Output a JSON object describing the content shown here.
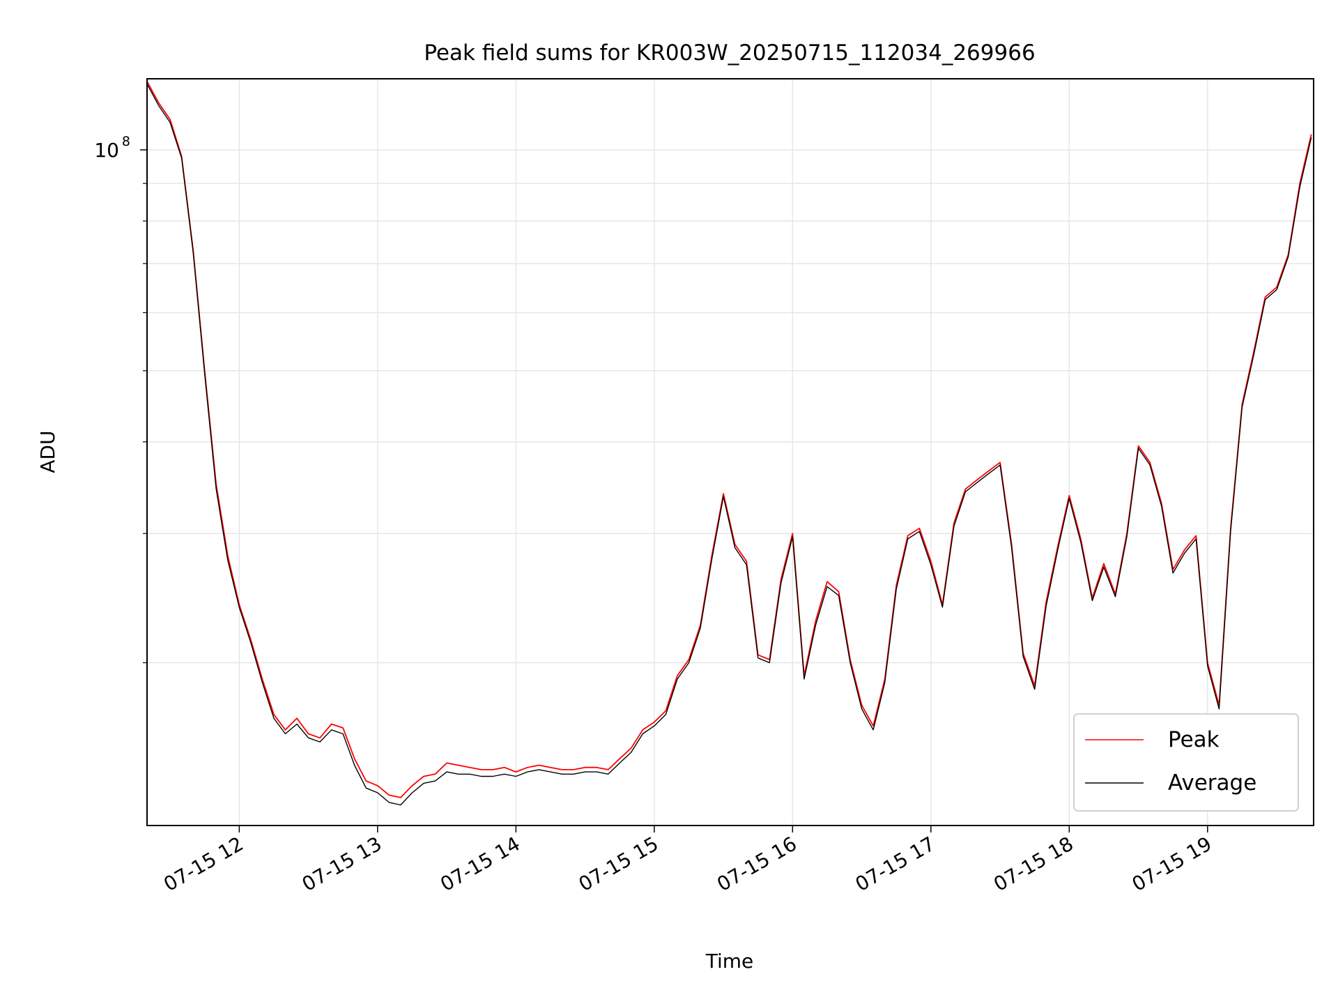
{
  "chart_data": {
    "type": "line",
    "title": "Peak field sums for KR003W_20250715_112034_269966",
    "xlabel": "Time",
    "ylabel": "ADU",
    "y_scale": "log",
    "grid": true,
    "legend_position": "lower-right",
    "xlim": [
      "2025-07-15 11:20",
      "2025-07-15 19:46"
    ],
    "ylim": [
      12000000,
      125000000
    ],
    "x_ticks": [
      {
        "time": "2025-07-15 12:00",
        "label": "07-15 12"
      },
      {
        "time": "2025-07-15 13:00",
        "label": "07-15 13"
      },
      {
        "time": "2025-07-15 14:00",
        "label": "07-15 14"
      },
      {
        "time": "2025-07-15 15:00",
        "label": "07-15 15"
      },
      {
        "time": "2025-07-15 16:00",
        "label": "07-15 16"
      },
      {
        "time": "2025-07-15 17:00",
        "label": "07-15 17"
      },
      {
        "time": "2025-07-15 18:00",
        "label": "07-15 18"
      },
      {
        "time": "2025-07-15 19:00",
        "label": "07-15 19"
      }
    ],
    "y_major_tick": {
      "value": 100000000,
      "label_base": "10",
      "label_exp": "8"
    },
    "y_minor_ticks": [
      20000000,
      30000000,
      40000000,
      50000000,
      60000000,
      70000000,
      80000000,
      90000000
    ],
    "x": [
      "11:20",
      "11:25",
      "11:30",
      "11:35",
      "11:40",
      "11:45",
      "11:50",
      "11:55",
      "12:00",
      "12:05",
      "12:10",
      "12:15",
      "12:20",
      "12:25",
      "12:30",
      "12:35",
      "12:40",
      "12:45",
      "12:50",
      "12:55",
      "13:00",
      "13:05",
      "13:10",
      "13:15",
      "13:20",
      "13:25",
      "13:30",
      "13:35",
      "13:40",
      "13:45",
      "13:50",
      "13:55",
      "14:00",
      "14:05",
      "14:10",
      "14:15",
      "14:20",
      "14:25",
      "14:30",
      "14:35",
      "14:40",
      "14:45",
      "14:50",
      "14:55",
      "15:00",
      "15:05",
      "15:10",
      "15:15",
      "15:20",
      "15:25",
      "15:30",
      "15:35",
      "15:40",
      "15:45",
      "15:50",
      "15:55",
      "16:00",
      "16:05",
      "16:10",
      "16:15",
      "16:20",
      "16:25",
      "16:30",
      "16:35",
      "16:40",
      "16:45",
      "16:50",
      "16:55",
      "17:00",
      "17:05",
      "17:10",
      "17:15",
      "17:20",
      "17:25",
      "17:30",
      "17:35",
      "17:40",
      "17:45",
      "17:50",
      "17:55",
      "18:00",
      "18:05",
      "18:10",
      "18:15",
      "18:20",
      "18:25",
      "18:30",
      "18:35",
      "18:40",
      "18:45",
      "18:50",
      "18:55",
      "19:00",
      "19:05",
      "19:10",
      "19:15",
      "19:20",
      "19:25",
      "19:30",
      "19:35",
      "19:40",
      "19:45"
    ],
    "series": [
      {
        "name": "Peak",
        "color": "#ff0000",
        "values": [
          124000000,
          116000000,
          110000000,
          98000000,
          73000000,
          50000000,
          35000000,
          28000000,
          24000000,
          21500000,
          19000000,
          17000000,
          16200000,
          16800000,
          16000000,
          15800000,
          16500000,
          16300000,
          14800000,
          13800000,
          13600000,
          13200000,
          13100000,
          13600000,
          14000000,
          14100000,
          14600000,
          14500000,
          14400000,
          14300000,
          14300000,
          14400000,
          14200000,
          14400000,
          14500000,
          14400000,
          14300000,
          14300000,
          14400000,
          14400000,
          14300000,
          14800000,
          15300000,
          16200000,
          16600000,
          17200000,
          19200000,
          20200000,
          22500000,
          28000000,
          34000000,
          29000000,
          27500000,
          20500000,
          20200000,
          26000000,
          30000000,
          19200000,
          22800000,
          25800000,
          25000000,
          20200000,
          17500000,
          16400000,
          19000000,
          25500000,
          29800000,
          30500000,
          27500000,
          24000000,
          31000000,
          34500000,
          35500000,
          36500000,
          37500000,
          29000000,
          20600000,
          18600000,
          24200000,
          28800000,
          33800000,
          29500000,
          24500000,
          27300000,
          24800000,
          30000000,
          39500000,
          37500000,
          33000000,
          26800000,
          28500000,
          29800000,
          20000000,
          17500000,
          30500000,
          45000000,
          53000000,
          63000000,
          65000000,
          72000000,
          90000000,
          105000000
        ]
      },
      {
        "name": "Average",
        "color": "#000000",
        "values": [
          123000000,
          115000000,
          109000000,
          97500000,
          72500000,
          49500000,
          34500000,
          27600000,
          23800000,
          21300000,
          18800000,
          16800000,
          16000000,
          16500000,
          15800000,
          15600000,
          16200000,
          16000000,
          14500000,
          13500000,
          13300000,
          12900000,
          12800000,
          13300000,
          13700000,
          13800000,
          14200000,
          14100000,
          14100000,
          14000000,
          14000000,
          14100000,
          14000000,
          14200000,
          14300000,
          14200000,
          14100000,
          14100000,
          14200000,
          14200000,
          14100000,
          14600000,
          15100000,
          16000000,
          16400000,
          17000000,
          19000000,
          20000000,
          22300000,
          27700000,
          33700000,
          28700000,
          27200000,
          20300000,
          20000000,
          25700000,
          29700000,
          19000000,
          22500000,
          25400000,
          24700000,
          20000000,
          17300000,
          16200000,
          18800000,
          25200000,
          29500000,
          30200000,
          27200000,
          23800000,
          30700000,
          34200000,
          35200000,
          36200000,
          37200000,
          28700000,
          20400000,
          18400000,
          23900000,
          28500000,
          33500000,
          29200000,
          24300000,
          27000000,
          24600000,
          29700000,
          39200000,
          37200000,
          32700000,
          26500000,
          28200000,
          29500000,
          19800000,
          17300000,
          30200000,
          44600000,
          52500000,
          62500000,
          64500000,
          71500000,
          89000000,
          104000000
        ]
      }
    ]
  }
}
